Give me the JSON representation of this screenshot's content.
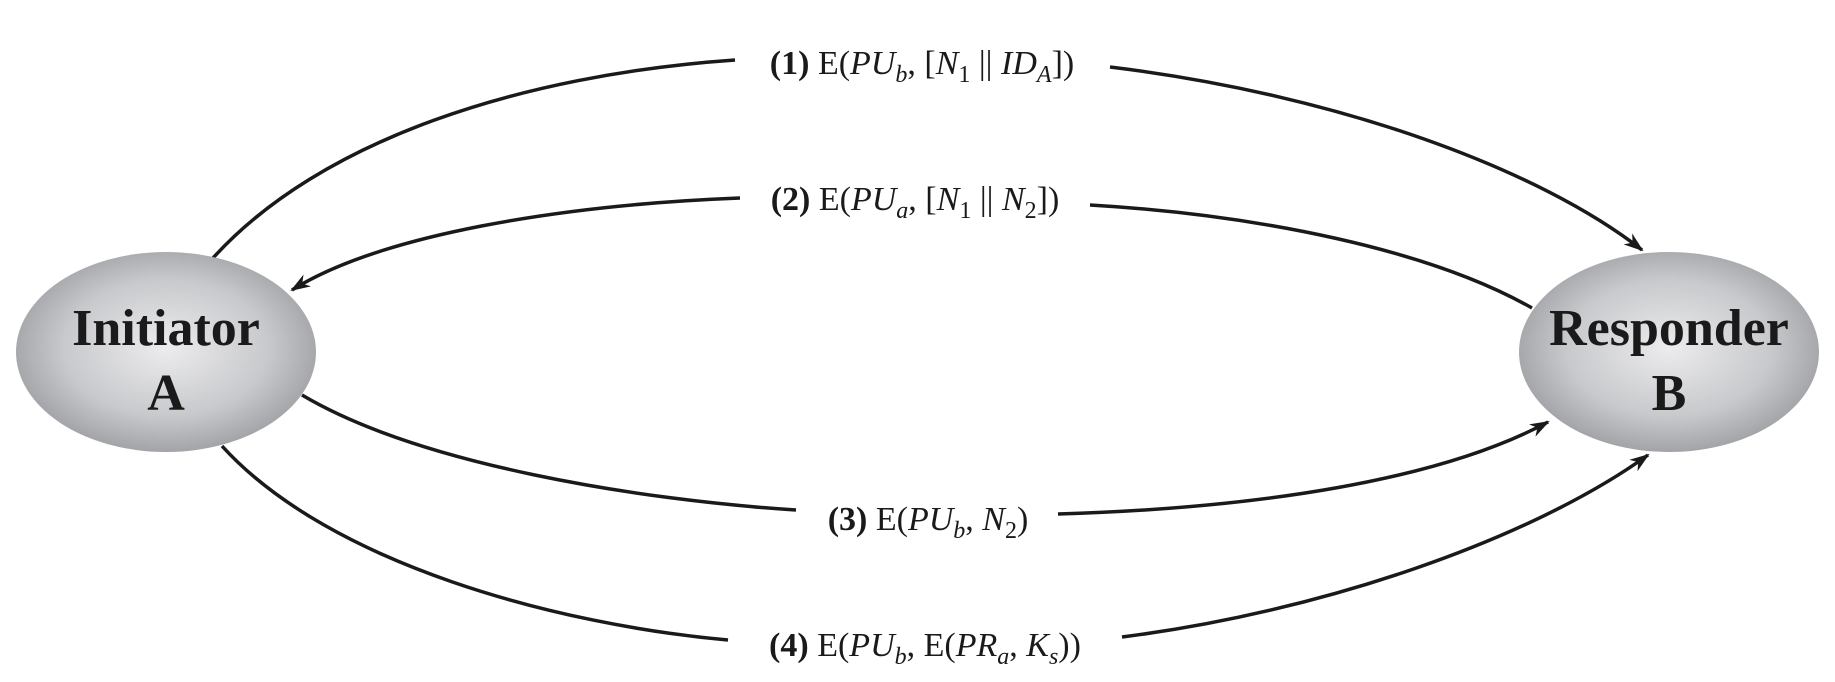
{
  "nodes": {
    "initiator": {
      "line1": "Initiator",
      "line2": "A"
    },
    "responder": {
      "line1": "Responder",
      "line2": "B"
    }
  },
  "messages": [
    {
      "num": "(1)",
      "parts": [
        {
          "t": " E("
        },
        {
          "t": "PU",
          "it": true
        },
        {
          "t": "b",
          "it": true,
          "sub": true
        },
        {
          "t": ", ["
        },
        {
          "t": "N",
          "it": true
        },
        {
          "t": "1",
          "sub": true
        },
        {
          "t": " || "
        },
        {
          "t": "ID",
          "it": true
        },
        {
          "t": "A",
          "it": true,
          "sub": true
        },
        {
          "t": "])"
        }
      ]
    },
    {
      "num": "(2)",
      "parts": [
        {
          "t": " E("
        },
        {
          "t": "PU",
          "it": true
        },
        {
          "t": "a",
          "it": true,
          "sub": true
        },
        {
          "t": ", ["
        },
        {
          "t": "N",
          "it": true
        },
        {
          "t": "1",
          "sub": true
        },
        {
          "t": " || "
        },
        {
          "t": "N",
          "it": true
        },
        {
          "t": "2",
          "sub": true
        },
        {
          "t": "])"
        }
      ]
    },
    {
      "num": "(3)",
      "parts": [
        {
          "t": " E("
        },
        {
          "t": "PU",
          "it": true
        },
        {
          "t": "b",
          "it": true,
          "sub": true
        },
        {
          "t": ", "
        },
        {
          "t": "N",
          "it": true
        },
        {
          "t": "2",
          "sub": true
        },
        {
          "t": ")"
        }
      ]
    },
    {
      "num": "(4)",
      "parts": [
        {
          "t": " E("
        },
        {
          "t": "PU",
          "it": true
        },
        {
          "t": "b",
          "it": true,
          "sub": true
        },
        {
          "t": ", E("
        },
        {
          "t": "PR",
          "it": true
        },
        {
          "t": "a",
          "it": true,
          "sub": true
        },
        {
          "t": ", "
        },
        {
          "t": "K",
          "it": true
        },
        {
          "t": "s",
          "it": true,
          "sub": true
        },
        {
          "t": "))"
        }
      ]
    }
  ],
  "colors": {
    "stroke": "#1a1a1a",
    "node_light": "#e8e8ea",
    "node_dark": "#8e8f92"
  }
}
